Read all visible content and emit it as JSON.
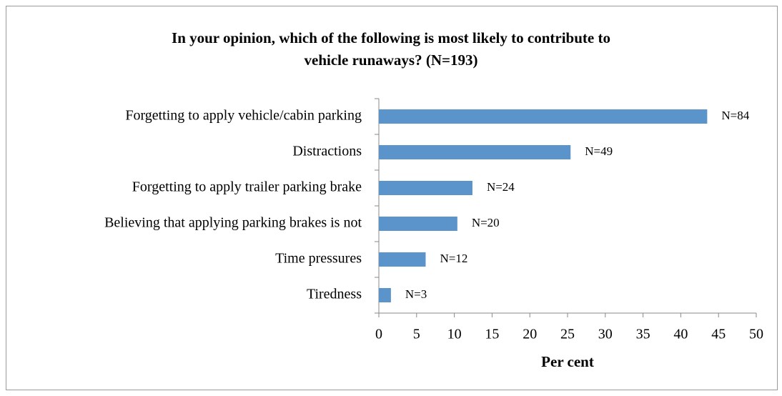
{
  "chart_data": {
    "type": "barh",
    "title": [
      "In your opinion, which of the following is most likely to contribute to",
      "vehicle runaways? (N=193)"
    ],
    "categories": [
      "Forgetting to apply vehicle/cabin parking",
      "Distractions",
      "Forgetting to apply trailer parking brake",
      "Believing that applying parking brakes is not",
      "Time pressures",
      "Tiredness"
    ],
    "values": [
      43.5,
      25.4,
      12.4,
      10.4,
      6.2,
      1.6
    ],
    "bar_labels": [
      "N=84",
      "N=49",
      "N=24",
      "N=20",
      "N=12",
      "N=3"
    ],
    "color": "#5b93cb",
    "xlabel": "Per cent",
    "xlim": [
      0,
      50
    ],
    "xticks": [
      0,
      5,
      10,
      15,
      20,
      25,
      30,
      35,
      40,
      45,
      50
    ]
  }
}
